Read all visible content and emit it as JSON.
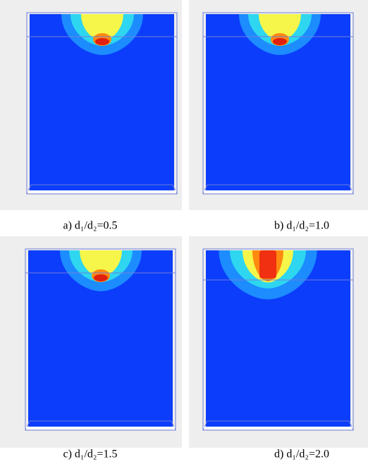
{
  "panels": [
    {
      "caption": "a) d₁/d₂=0.5"
    },
    {
      "caption": "b) d₁/d₂=1.0"
    },
    {
      "caption": "c) d₁/d₂=1.5"
    },
    {
      "caption": "d) d₁/d₂=2.0"
    }
  ]
}
